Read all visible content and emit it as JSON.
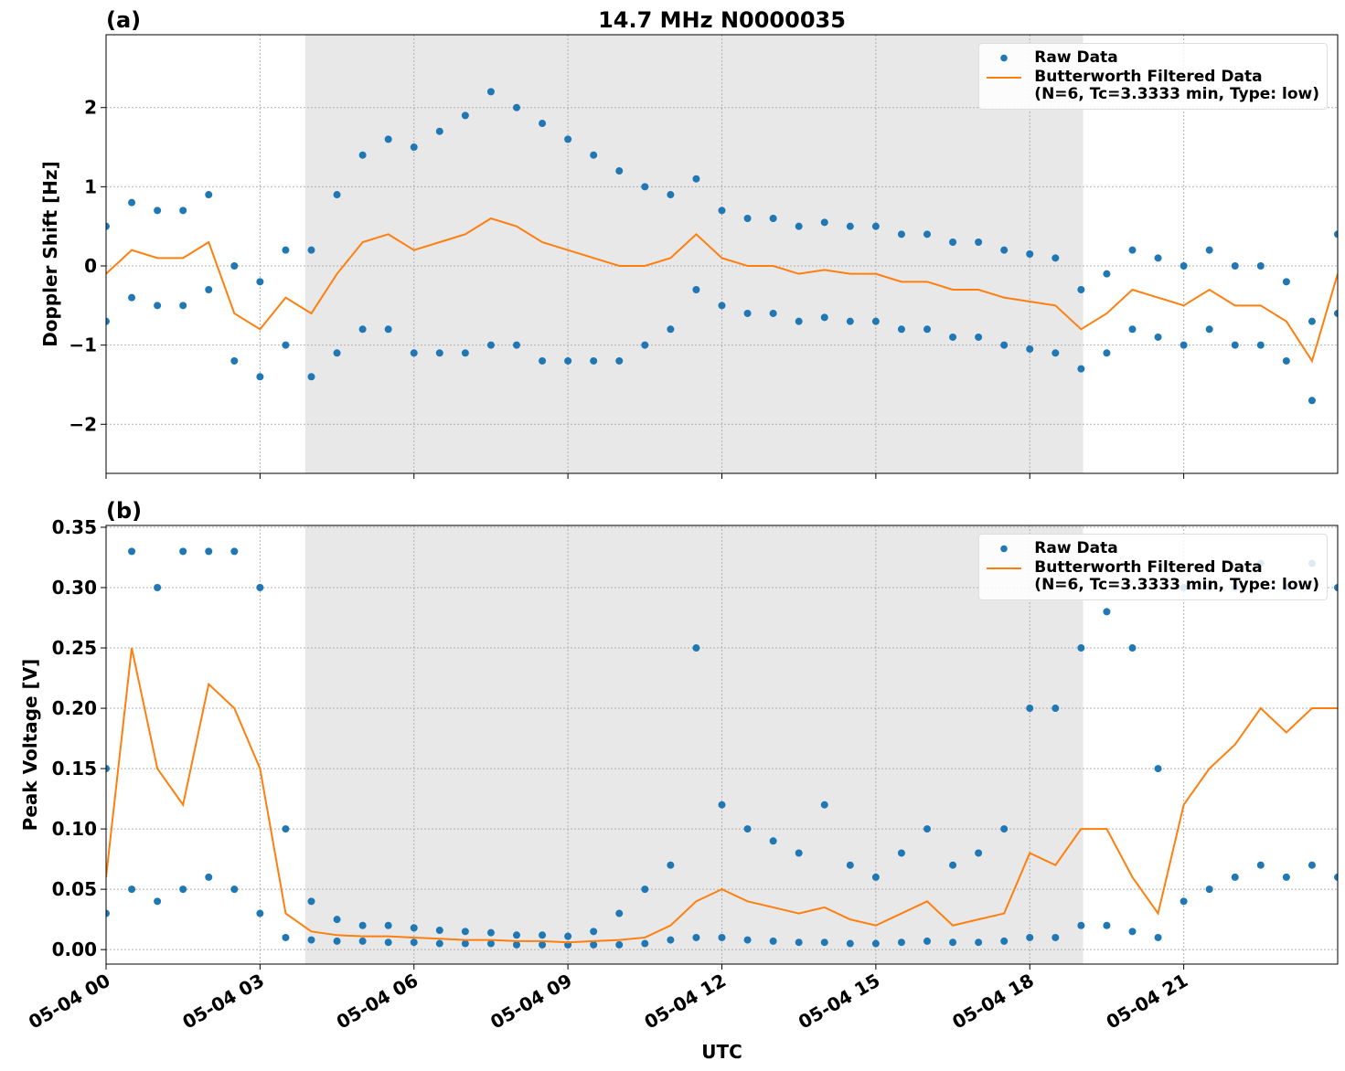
{
  "chart_data": [
    {
      "type": "line",
      "title": "14.7 MHz N0000035",
      "panel_label": "(a)",
      "y_label": "Doppler Shift [Hz]",
      "xlim": [
        0,
        24
      ],
      "xticks": [
        0,
        3,
        6,
        9,
        12,
        15,
        18,
        21
      ],
      "ylim": [
        -2.62,
        2.92
      ],
      "yticks": [
        {
          "value": -2,
          "label": "−2"
        },
        {
          "value": -1,
          "label": "−1"
        },
        0,
        1,
        2
      ],
      "grid": true,
      "shaded_span": [
        3.88,
        19.04
      ],
      "shade_color": "#e8e8e8",
      "legend": "upper right",
      "series": [
        {
          "name": "Raw Data",
          "kind": "scatter",
          "color": "#1f77b4",
          "x": [
            0,
            0.5,
            1,
            1.5,
            2,
            2.5,
            3,
            3.5,
            4,
            4.5,
            5,
            5.5,
            6,
            6.5,
            7,
            7.5,
            8,
            8.5,
            9,
            9.5,
            10,
            10.5,
            11,
            11.5,
            12,
            12.5,
            13,
            13.5,
            14,
            14.5,
            15,
            15.5,
            16,
            16.5,
            17,
            17.5,
            18,
            18.5,
            19,
            19.5,
            20,
            20.5,
            21,
            21.5,
            22,
            22.5,
            23,
            23.5,
            24,
            0,
            0.5,
            1,
            1.5,
            2,
            2.5,
            3,
            3.5,
            4,
            4.5,
            5,
            5.5,
            6,
            6.5,
            7,
            7.5,
            8,
            8.5,
            9,
            9.5,
            10,
            10.5,
            11,
            11.5,
            12,
            12.5,
            13,
            13.5,
            14,
            14.5,
            15,
            15.5,
            16,
            16.5,
            17,
            17.5,
            18,
            18.5,
            19,
            19.5,
            20,
            20.5,
            21,
            21.5,
            22,
            22.5,
            23,
            23.5,
            24
          ],
          "values": [
            0.5,
            0.8,
            0.7,
            0.7,
            0.9,
            0.0,
            -0.2,
            0.2,
            0.2,
            0.9,
            1.4,
            1.6,
            1.5,
            1.7,
            1.9,
            2.2,
            2.0,
            1.8,
            1.6,
            1.4,
            1.2,
            1.0,
            0.9,
            1.1,
            0.7,
            0.6,
            0.6,
            0.5,
            0.55,
            0.5,
            0.5,
            0.4,
            0.4,
            0.3,
            0.3,
            0.2,
            0.15,
            0.1,
            -0.3,
            -0.1,
            0.2,
            0.1,
            0.0,
            0.2,
            0.0,
            0.0,
            -0.2,
            -0.7,
            0.4,
            -0.7,
            -0.4,
            -0.5,
            -0.5,
            -0.3,
            -1.2,
            -1.4,
            -1.0,
            -1.4,
            -1.1,
            -0.8,
            -0.8,
            -1.1,
            -1.1,
            -1.1,
            -1.0,
            -1.0,
            -1.2,
            -1.2,
            -1.2,
            -1.2,
            -1.0,
            -0.8,
            -0.3,
            -0.5,
            -0.6,
            -0.6,
            -0.7,
            -0.65,
            -0.7,
            -0.7,
            -0.8,
            -0.8,
            -0.9,
            -0.9,
            -1.0,
            -1.05,
            -1.1,
            -1.3,
            -1.1,
            -0.8,
            -0.9,
            -1.0,
            -0.8,
            -1.0,
            -1.0,
            -1.2,
            -1.7,
            -0.6
          ]
        },
        {
          "name": "Butterworth Filtered Data\n(N=6, Tc=3.3333 min, Type: low)",
          "kind": "line",
          "color": "#ff7f0e",
          "x": [
            0,
            0.5,
            1,
            1.5,
            2,
            2.5,
            3,
            3.5,
            4,
            4.5,
            5,
            5.5,
            6,
            6.5,
            7,
            7.5,
            8,
            8.5,
            9,
            9.5,
            10,
            10.5,
            11,
            11.5,
            12,
            12.5,
            13,
            13.5,
            14,
            14.5,
            15,
            15.5,
            16,
            16.5,
            17,
            17.5,
            18,
            18.5,
            19,
            19.5,
            20,
            20.5,
            21,
            21.5,
            22,
            22.5,
            23,
            23.5,
            24
          ],
          "values": [
            -0.1,
            0.2,
            0.1,
            0.1,
            0.3,
            -0.6,
            -0.8,
            -0.4,
            -0.6,
            -0.1,
            0.3,
            0.4,
            0.2,
            0.3,
            0.4,
            0.6,
            0.5,
            0.3,
            0.2,
            0.1,
            0.0,
            0.0,
            0.1,
            0.4,
            0.1,
            0.0,
            0.0,
            -0.1,
            -0.05,
            -0.1,
            -0.1,
            -0.2,
            -0.2,
            -0.3,
            -0.3,
            -0.4,
            -0.45,
            -0.5,
            -0.8,
            -0.6,
            -0.3,
            -0.4,
            -0.5,
            -0.3,
            -0.5,
            -0.5,
            -0.7,
            -1.2,
            -0.1
          ]
        }
      ]
    },
    {
      "type": "line",
      "panel_label": "(b)",
      "y_label": "Peak Voltage [V]",
      "x_label": "UTC",
      "xlim": [
        0,
        24
      ],
      "xticks": [
        {
          "value": 0,
          "label": "05-04 00"
        },
        {
          "value": 3,
          "label": "05-04 03"
        },
        {
          "value": 6,
          "label": "05-04 06"
        },
        {
          "value": 9,
          "label": "05-04 09"
        },
        {
          "value": 12,
          "label": "05-04 12"
        },
        {
          "value": 15,
          "label": "05-04 15"
        },
        {
          "value": 18,
          "label": "05-04 18"
        },
        {
          "value": 21,
          "label": "05-04 21"
        }
      ],
      "ylim": [
        -0.012,
        0.3515
      ],
      "yticks": [
        {
          "value": 0,
          "label": "0.00"
        },
        {
          "value": 0.05,
          "label": "0.05"
        },
        {
          "value": 0.1,
          "label": "0.10"
        },
        {
          "value": 0.15,
          "label": "0.15"
        },
        {
          "value": 0.2,
          "label": "0.20"
        },
        {
          "value": 0.25,
          "label": "0.25"
        },
        {
          "value": 0.3,
          "label": "0.30"
        },
        {
          "value": 0.35,
          "label": "0.35"
        }
      ],
      "grid": true,
      "shaded_span": [
        3.88,
        19.04
      ],
      "shade_color": "#e8e8e8",
      "legend": "upper right",
      "series": [
        {
          "name": "Raw Data",
          "kind": "scatter",
          "color": "#1f77b4",
          "x": [
            0,
            0.5,
            1,
            1.5,
            2,
            2.5,
            3,
            3.5,
            4,
            4.5,
            5,
            5.5,
            6,
            6.5,
            7,
            7.5,
            8,
            8.5,
            9,
            9.5,
            10,
            10.5,
            11,
            11.5,
            12,
            12.5,
            13,
            13.5,
            14,
            14.5,
            15,
            15.5,
            16,
            16.5,
            17,
            17.5,
            18,
            18.5,
            19,
            19.5,
            20,
            20.5,
            21,
            21.5,
            22,
            22.5,
            23,
            23.5,
            24,
            0,
            0.5,
            1,
            1.5,
            2,
            2.5,
            3,
            3.5,
            4,
            4.5,
            5,
            5.5,
            6,
            6.5,
            7,
            7.5,
            8,
            8.5,
            9,
            9.5,
            10,
            10.5,
            11,
            11.5,
            12,
            12.5,
            13,
            13.5,
            14,
            14.5,
            15,
            15.5,
            16,
            16.5,
            17,
            17.5,
            18,
            18.5,
            19,
            19.5,
            20,
            20.5,
            21,
            21.5,
            22,
            22.5,
            23,
            23.5,
            24
          ],
          "values": [
            0.15,
            0.33,
            0.3,
            0.33,
            0.33,
            0.33,
            0.3,
            0.1,
            0.04,
            0.025,
            0.02,
            0.02,
            0.018,
            0.016,
            0.015,
            0.014,
            0.012,
            0.012,
            0.011,
            0.015,
            0.03,
            0.05,
            0.07,
            0.25,
            0.12,
            0.1,
            0.09,
            0.08,
            0.12,
            0.07,
            0.06,
            0.08,
            0.1,
            0.07,
            0.08,
            0.1,
            0.2,
            0.2,
            0.25,
            0.28,
            0.25,
            0.15,
            0.3,
            0.3,
            0.3,
            0.32,
            0.3,
            0.32,
            0.3,
            0.03,
            0.05,
            0.04,
            0.05,
            0.06,
            0.05,
            0.03,
            0.01,
            0.008,
            0.007,
            0.007,
            0.006,
            0.006,
            0.005,
            0.005,
            0.005,
            0.004,
            0.004,
            0.004,
            0.004,
            0.004,
            0.005,
            0.008,
            0.01,
            0.01,
            0.008,
            0.007,
            0.006,
            0.006,
            0.005,
            0.005,
            0.006,
            0.007,
            0.006,
            0.006,
            0.007,
            0.01,
            0.01,
            0.02,
            0.02,
            0.015,
            0.01,
            0.04,
            0.05,
            0.06,
            0.07,
            0.06,
            0.07,
            0.06
          ]
        },
        {
          "name": "Butterworth Filtered Data\n(N=6, Tc=3.3333 min, Type: low)",
          "kind": "line",
          "color": "#ff7f0e",
          "x": [
            0,
            0.5,
            1,
            1.5,
            2,
            2.5,
            3,
            3.5,
            4,
            4.5,
            5,
            5.5,
            6,
            6.5,
            7,
            7.5,
            8,
            8.5,
            9,
            9.5,
            10,
            10.5,
            11,
            11.5,
            12,
            12.5,
            13,
            13.5,
            14,
            14.5,
            15,
            15.5,
            16,
            16.5,
            17,
            17.5,
            18,
            18.5,
            19,
            19.5,
            20,
            20.5,
            21,
            21.5,
            22,
            22.5,
            23,
            23.5,
            24
          ],
          "values": [
            0.06,
            0.25,
            0.15,
            0.12,
            0.22,
            0.2,
            0.15,
            0.03,
            0.015,
            0.012,
            0.011,
            0.011,
            0.01,
            0.009,
            0.008,
            0.008,
            0.007,
            0.007,
            0.006,
            0.007,
            0.008,
            0.01,
            0.02,
            0.04,
            0.05,
            0.04,
            0.035,
            0.03,
            0.035,
            0.025,
            0.02,
            0.03,
            0.04,
            0.02,
            0.025,
            0.03,
            0.08,
            0.07,
            0.1,
            0.1,
            0.06,
            0.03,
            0.12,
            0.15,
            0.17,
            0.2,
            0.18,
            0.2,
            0.2
          ]
        }
      ]
    }
  ]
}
